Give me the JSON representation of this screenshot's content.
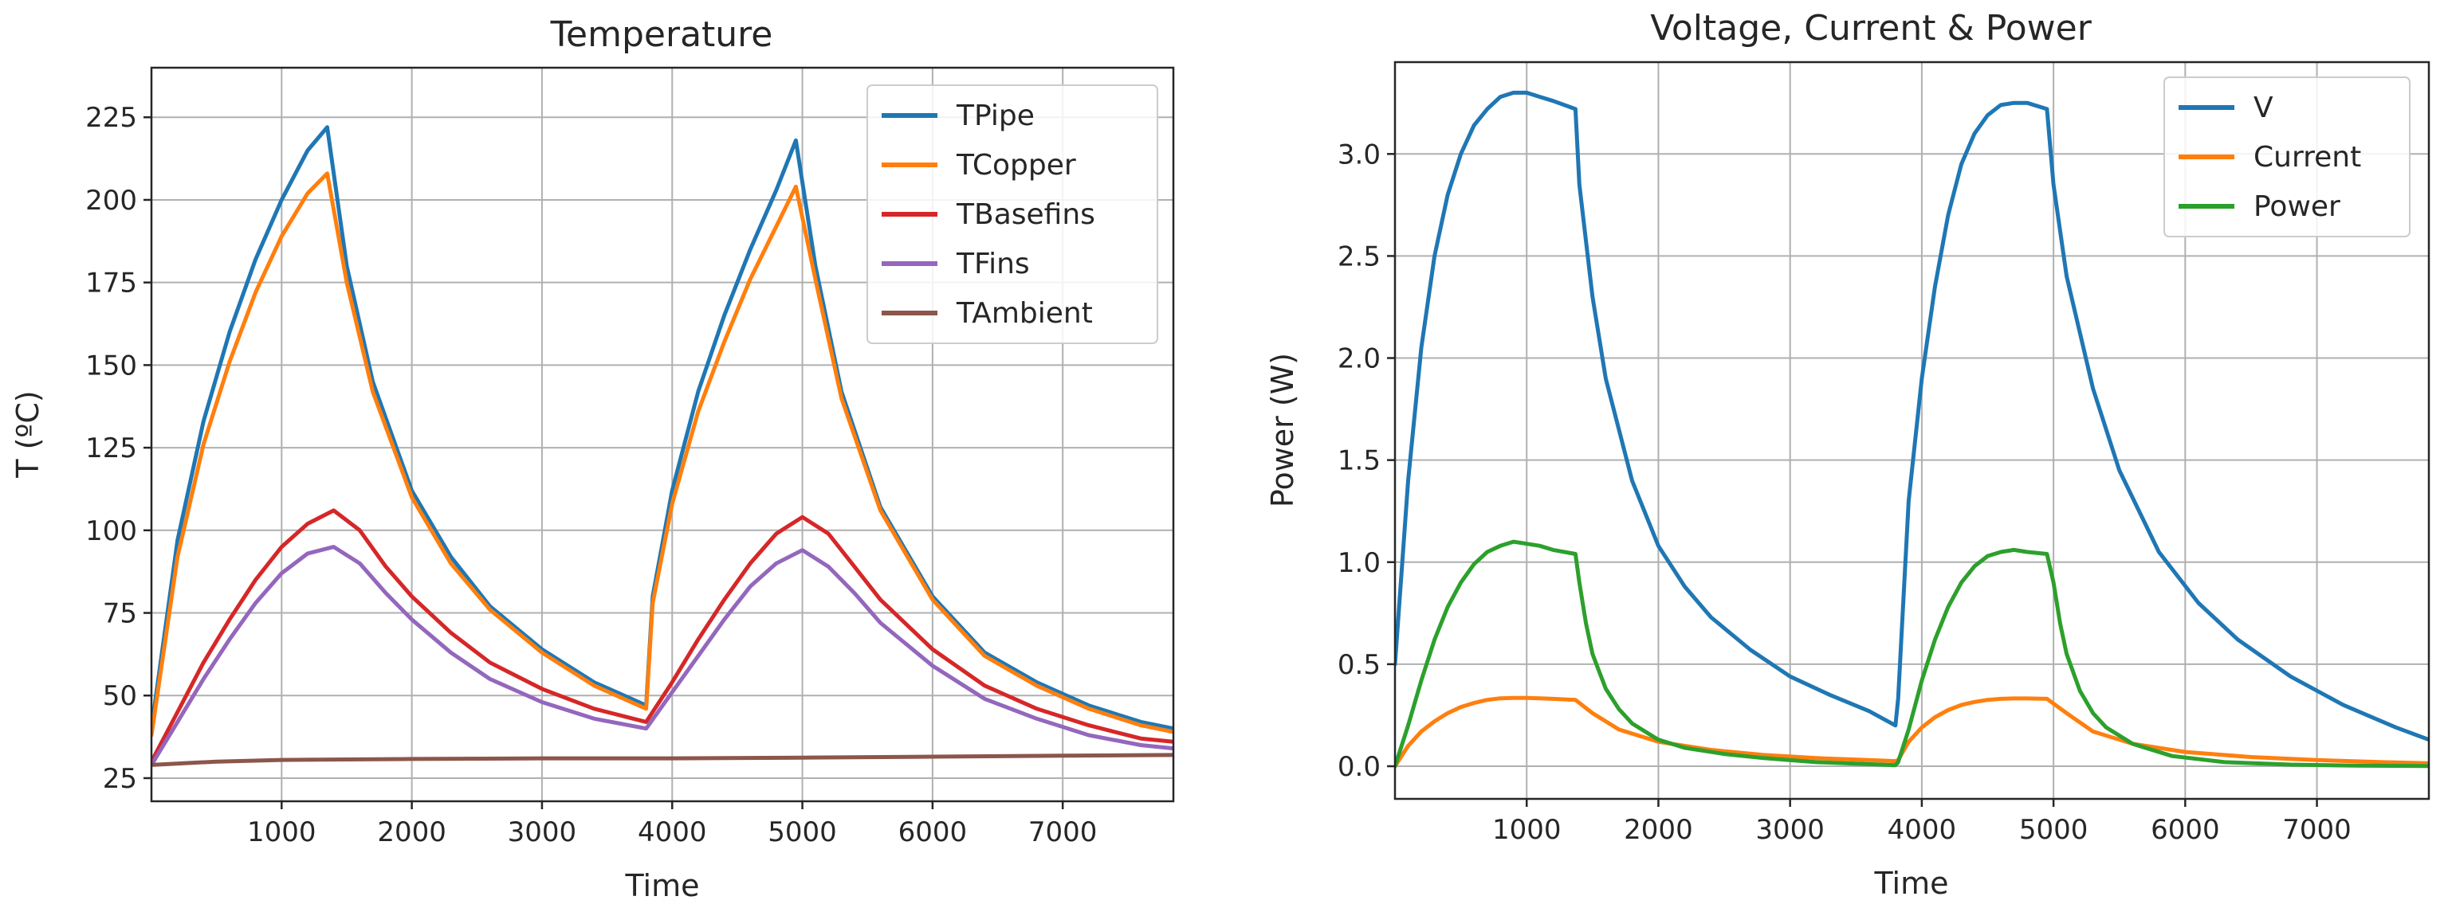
{
  "chart_data": [
    {
      "type": "line",
      "title": "Temperature",
      "xlabel": "Time",
      "ylabel": "T (ºC)",
      "xlim": [
        0,
        7850
      ],
      "ylim": [
        18,
        240
      ],
      "xticks": [
        1000,
        2000,
        3000,
        4000,
        5000,
        6000,
        7000
      ],
      "yticks": [
        25,
        50,
        75,
        100,
        125,
        150,
        175,
        200,
        225
      ],
      "grid": true,
      "legend_position": "top-right",
      "series": [
        {
          "name": "TPipe",
          "color": "#1f77b4",
          "x": [
            0,
            200,
            400,
            600,
            800,
            1000,
            1200,
            1350,
            1500,
            1700,
            2000,
            2300,
            2600,
            3000,
            3400,
            3800,
            3850,
            4000,
            4200,
            4400,
            4600,
            4800,
            4950,
            5100,
            5300,
            5600,
            6000,
            6400,
            6800,
            7200,
            7600,
            7850
          ],
          "y": [
            40,
            97,
            133,
            160,
            182,
            200,
            215,
            222,
            180,
            145,
            112,
            92,
            77,
            64,
            54,
            47,
            80,
            112,
            142,
            165,
            185,
            203,
            218,
            180,
            142,
            107,
            80,
            63,
            54,
            47,
            42,
            40
          ]
        },
        {
          "name": "TCopper",
          "color": "#ff7f0e",
          "x": [
            0,
            200,
            400,
            600,
            800,
            1000,
            1200,
            1350,
            1500,
            1700,
            2000,
            2300,
            2600,
            3000,
            3400,
            3800,
            3850,
            4000,
            4200,
            4400,
            4600,
            4800,
            4950,
            5100,
            5300,
            5600,
            6000,
            6400,
            6800,
            7200,
            7600,
            7850
          ],
          "y": [
            38,
            92,
            126,
            151,
            172,
            189,
            202,
            208,
            175,
            142,
            110,
            90,
            76,
            63,
            53,
            46,
            78,
            108,
            136,
            157,
            176,
            192,
            204,
            176,
            140,
            106,
            79,
            62,
            53,
            46,
            41,
            39
          ]
        },
        {
          "name": "TBasefins",
          "color": "#d62728",
          "x": [
            0,
            200,
            400,
            600,
            800,
            1000,
            1200,
            1400,
            1600,
            1800,
            2000,
            2300,
            2600,
            3000,
            3400,
            3800,
            4000,
            4200,
            4400,
            4600,
            4800,
            5000,
            5200,
            5400,
            5600,
            6000,
            6400,
            6800,
            7200,
            7600,
            7850
          ],
          "y": [
            30,
            45,
            60,
            73,
            85,
            95,
            102,
            106,
            100,
            89,
            80,
            69,
            60,
            52,
            46,
            42,
            54,
            67,
            79,
            90,
            99,
            104,
            99,
            89,
            79,
            64,
            53,
            46,
            41,
            37,
            36
          ]
        },
        {
          "name": "TFins",
          "color": "#9467bd",
          "x": [
            0,
            200,
            400,
            600,
            800,
            1000,
            1200,
            1400,
            1600,
            1800,
            2000,
            2300,
            2600,
            3000,
            3400,
            3800,
            4000,
            4200,
            4400,
            4600,
            4800,
            5000,
            5200,
            5400,
            5600,
            6000,
            6400,
            6800,
            7200,
            7600,
            7850
          ],
          "y": [
            29,
            42,
            55,
            67,
            78,
            87,
            93,
            95,
            90,
            81,
            73,
            63,
            55,
            48,
            43,
            40,
            51,
            62,
            73,
            83,
            90,
            94,
            89,
            81,
            72,
            59,
            49,
            43,
            38,
            35,
            34
          ]
        },
        {
          "name": "TAmbient",
          "color": "#8c564b",
          "x": [
            0,
            500,
            1000,
            2000,
            3000,
            4000,
            5000,
            6000,
            7000,
            7850
          ],
          "y": [
            29,
            30,
            30.5,
            30.8,
            31,
            31,
            31.2,
            31.5,
            31.8,
            32
          ]
        }
      ]
    },
    {
      "type": "line",
      "title": "Voltage, Current & Power",
      "xlabel": "Time",
      "ylabel": "Power (W)",
      "xlim": [
        0,
        7850
      ],
      "ylim": [
        -0.16,
        3.45
      ],
      "xticks": [
        1000,
        2000,
        3000,
        4000,
        5000,
        6000,
        7000
      ],
      "yticks": [
        0.0,
        0.5,
        1.0,
        1.5,
        2.0,
        2.5,
        3.0
      ],
      "ytick_labels": [
        "0.0",
        "0.5",
        "1.0",
        "1.5",
        "2.0",
        "2.5",
        "3.0"
      ],
      "grid": true,
      "legend_position": "top-right",
      "series": [
        {
          "name": "V",
          "color": "#1f77b4",
          "x": [
            0,
            100,
            200,
            300,
            400,
            500,
            600,
            700,
            800,
            900,
            1000,
            1100,
            1200,
            1370,
            1400,
            1500,
            1600,
            1800,
            2000,
            2200,
            2400,
            2700,
            3000,
            3300,
            3600,
            3800,
            3820,
            3900,
            4000,
            4100,
            4200,
            4300,
            4400,
            4500,
            4600,
            4700,
            4800,
            4950,
            5000,
            5100,
            5300,
            5500,
            5800,
            6100,
            6400,
            6800,
            7200,
            7600,
            7850
          ],
          "y": [
            0.5,
            1.4,
            2.05,
            2.5,
            2.8,
            3.0,
            3.14,
            3.22,
            3.28,
            3.3,
            3.3,
            3.28,
            3.26,
            3.22,
            2.85,
            2.3,
            1.9,
            1.4,
            1.08,
            0.88,
            0.73,
            0.57,
            0.44,
            0.35,
            0.27,
            0.2,
            0.33,
            1.3,
            1.9,
            2.35,
            2.7,
            2.95,
            3.1,
            3.19,
            3.24,
            3.25,
            3.25,
            3.22,
            2.85,
            2.4,
            1.85,
            1.45,
            1.05,
            0.8,
            0.62,
            0.44,
            0.3,
            0.19,
            0.13
          ]
        },
        {
          "name": "Current",
          "color": "#ff7f0e",
          "x": [
            0,
            100,
            200,
            300,
            400,
            500,
            600,
            700,
            800,
            900,
            1000,
            1100,
            1200,
            1370,
            1500,
            1700,
            2000,
            2400,
            2800,
            3200,
            3600,
            3800,
            3820,
            3900,
            4000,
            4100,
            4200,
            4300,
            4400,
            4500,
            4600,
            4700,
            4800,
            4950,
            5100,
            5300,
            5600,
            6000,
            6500,
            7000,
            7500,
            7850
          ],
          "y": [
            0.0,
            0.1,
            0.17,
            0.22,
            0.26,
            0.29,
            0.31,
            0.325,
            0.333,
            0.335,
            0.335,
            0.333,
            0.33,
            0.325,
            0.26,
            0.18,
            0.12,
            0.08,
            0.055,
            0.04,
            0.03,
            0.025,
            0.03,
            0.12,
            0.19,
            0.24,
            0.275,
            0.3,
            0.315,
            0.325,
            0.33,
            0.332,
            0.332,
            0.33,
            0.26,
            0.17,
            0.11,
            0.07,
            0.045,
            0.03,
            0.02,
            0.015
          ]
        },
        {
          "name": "Power",
          "color": "#2ca02c",
          "x": [
            0,
            100,
            200,
            300,
            400,
            500,
            600,
            700,
            800,
            900,
            1000,
            1100,
            1200,
            1370,
            1400,
            1450,
            1500,
            1600,
            1700,
            1800,
            2000,
            2200,
            2500,
            2800,
            3200,
            3600,
            3800,
            3820,
            3900,
            4000,
            4100,
            4200,
            4300,
            4400,
            4500,
            4600,
            4700,
            4800,
            4950,
            5000,
            5050,
            5100,
            5200,
            5300,
            5400,
            5600,
            5900,
            6300,
            6800,
            7300,
            7850
          ],
          "y": [
            0.0,
            0.2,
            0.42,
            0.62,
            0.78,
            0.9,
            0.99,
            1.05,
            1.08,
            1.1,
            1.09,
            1.08,
            1.06,
            1.04,
            0.9,
            0.7,
            0.55,
            0.38,
            0.28,
            0.21,
            0.13,
            0.09,
            0.06,
            0.04,
            0.02,
            0.01,
            0.005,
            0.02,
            0.18,
            0.42,
            0.62,
            0.78,
            0.9,
            0.98,
            1.03,
            1.05,
            1.06,
            1.05,
            1.04,
            0.9,
            0.7,
            0.55,
            0.37,
            0.26,
            0.19,
            0.11,
            0.05,
            0.02,
            0.008,
            0.003,
            0.001
          ]
        }
      ]
    }
  ]
}
